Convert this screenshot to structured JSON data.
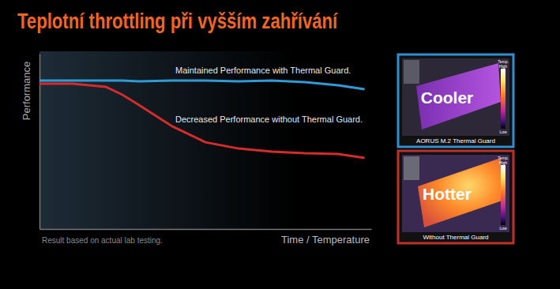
{
  "chart_data": {
    "type": "line",
    "title": "Teplotní throttling při vyšším zahřívání",
    "x_label": "Time / Temperature",
    "y_label": "Performance",
    "annotations": [
      "Result based on actual lab testing."
    ],
    "x": [
      0,
      10,
      20,
      25,
      30,
      40,
      50,
      60,
      70,
      80,
      90,
      98
    ],
    "series": [
      {
        "name": "Maintained Performance with Thermal Guard.",
        "color": "#2f9bd6",
        "values": [
          84.7,
          84.7,
          84.7,
          84.7,
          84.2,
          84.7,
          84.7,
          84.2,
          84.7,
          83.8,
          82.0,
          79.7
        ]
      },
      {
        "name": "Decreased Performance without Thermal Guard.",
        "color": "#d42b2b",
        "values": [
          82.9,
          82.9,
          81.1,
          76.6,
          70.7,
          58.6,
          49.5,
          45.9,
          44.1,
          43.2,
          42.8,
          40.5
        ]
      }
    ],
    "xlim": [
      0,
      100
    ],
    "ylim": [
      0,
      100
    ],
    "xticks": [],
    "yticks": [],
    "tick_labels": false,
    "grid": false
  },
  "panels": [
    {
      "label": "Cooler",
      "caption": "AORUS M.2 Thermal Guard",
      "color": "#2f8fd0"
    },
    {
      "label": "Hotter",
      "caption": "Without Thermal Guard",
      "color": "#c0302a"
    }
  ],
  "colorbar": {
    "title": "Temp.",
    "high": "High",
    "low": "Low"
  }
}
